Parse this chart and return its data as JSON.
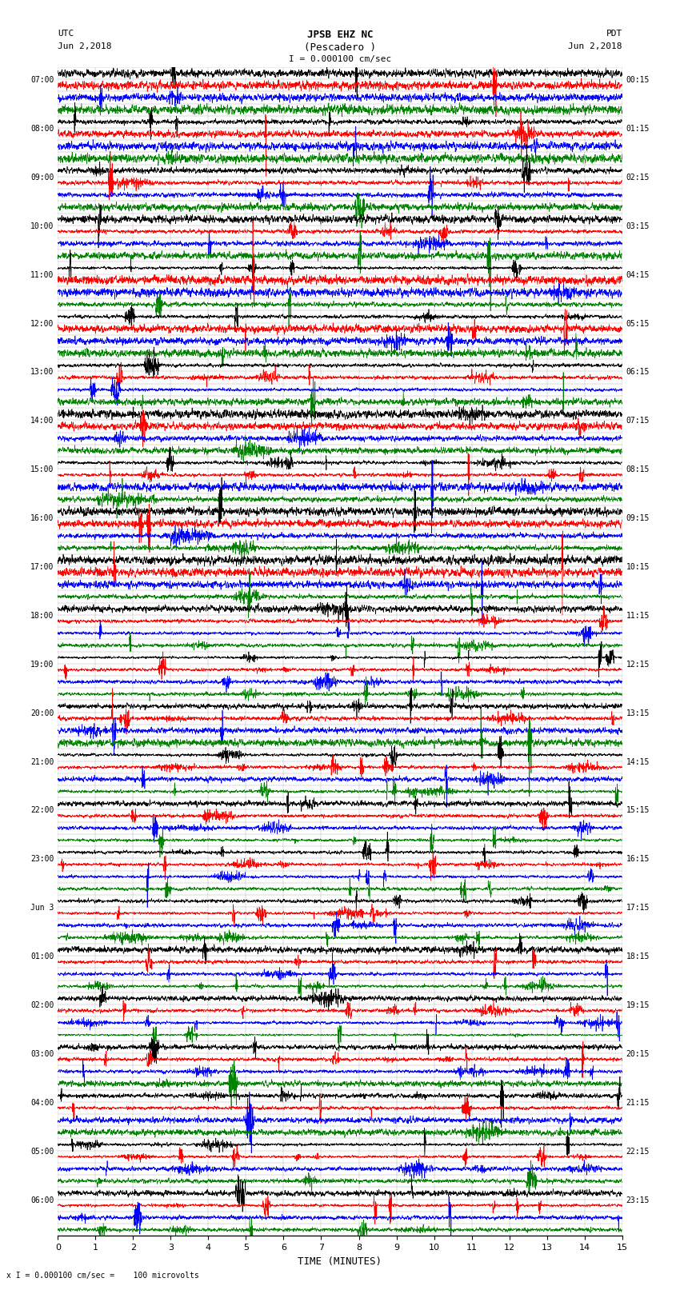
{
  "title_line1": "JPSB EHZ NC",
  "title_line2": "(Pescadero )",
  "title_line3": "I = 0.000100 cm/sec",
  "utc_label": "UTC",
  "utc_date": "Jun 2,2018",
  "pdt_label": "PDT",
  "pdt_date": "Jun 2,2018",
  "bottom_note": "x I = 0.000100 cm/sec =    100 microvolts",
  "left_times": [
    "07:00",
    "",
    "",
    "",
    "08:00",
    "",
    "",
    "",
    "09:00",
    "",
    "",
    "",
    "10:00",
    "",
    "",
    "",
    "11:00",
    "",
    "",
    "",
    "12:00",
    "",
    "",
    "",
    "13:00",
    "",
    "",
    "",
    "14:00",
    "",
    "",
    "",
    "15:00",
    "",
    "",
    "",
    "16:00",
    "",
    "",
    "",
    "17:00",
    "",
    "",
    "",
    "18:00",
    "",
    "",
    "",
    "19:00",
    "",
    "",
    "",
    "20:00",
    "",
    "",
    "",
    "21:00",
    "",
    "",
    "",
    "22:00",
    "",
    "",
    "",
    "23:00",
    "",
    "",
    "",
    "Jun 3",
    "",
    "",
    "",
    "01:00",
    "",
    "",
    "",
    "02:00",
    "",
    "",
    "",
    "03:00",
    "",
    "",
    "",
    "04:00",
    "",
    "",
    "",
    "05:00",
    "",
    "",
    "",
    "06:00",
    "",
    "",
    ""
  ],
  "right_times": [
    "00:15",
    "",
    "",
    "",
    "01:15",
    "",
    "",
    "",
    "02:15",
    "",
    "",
    "",
    "03:15",
    "",
    "",
    "",
    "04:15",
    "",
    "",
    "",
    "05:15",
    "",
    "",
    "",
    "06:15",
    "",
    "",
    "",
    "07:15",
    "",
    "",
    "",
    "08:15",
    "",
    "",
    "",
    "09:15",
    "",
    "",
    "",
    "10:15",
    "",
    "",
    "",
    "11:15",
    "",
    "",
    "",
    "12:15",
    "",
    "",
    "",
    "13:15",
    "",
    "",
    "",
    "14:15",
    "",
    "",
    "",
    "15:15",
    "",
    "",
    "",
    "16:15",
    "",
    "",
    "",
    "17:15",
    "",
    "",
    "",
    "18:15",
    "",
    "",
    "",
    "19:15",
    "",
    "",
    "",
    "20:15",
    "",
    "",
    "",
    "21:15",
    "",
    "",
    "",
    "22:15",
    "",
    "",
    "",
    "23:15",
    "",
    "",
    ""
  ],
  "trace_colors": [
    "black",
    "red",
    "blue",
    "green"
  ],
  "num_rows": 96,
  "bg_color": "white",
  "x_ticks": [
    0,
    1,
    2,
    3,
    4,
    5,
    6,
    7,
    8,
    9,
    10,
    11,
    12,
    13,
    14,
    15
  ],
  "x_label": "TIME (MINUTES)",
  "figsize": [
    8.5,
    16.13
  ]
}
